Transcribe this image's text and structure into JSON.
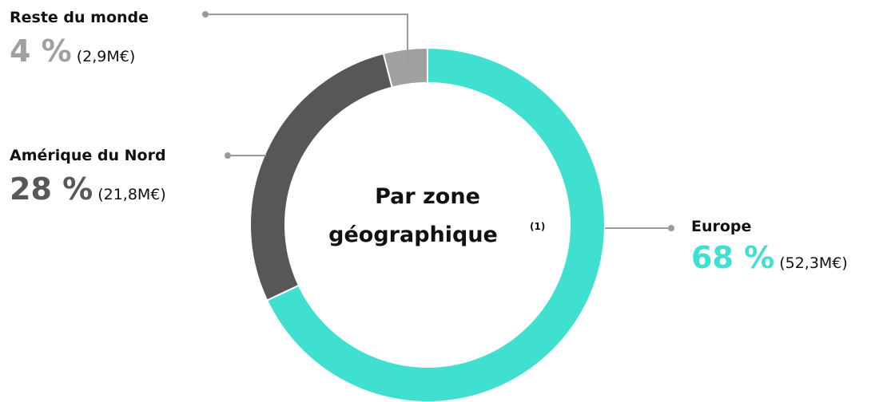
{
  "chart_data": {
    "type": "donut",
    "title": "Par zone géographique",
    "title_note": "(1)",
    "categories": [
      "Europe",
      "Amérique du Nord",
      "Reste du monde"
    ],
    "values": [
      68,
      28,
      4
    ],
    "value_labels": [
      "68 %",
      "28 %",
      "4 %"
    ],
    "amounts": [
      "(52,3M€)",
      "(21,8M€)",
      "(2,9M€)"
    ],
    "colors": [
      "#40e0d0",
      "#575757",
      "#a0a0a0"
    ]
  }
}
